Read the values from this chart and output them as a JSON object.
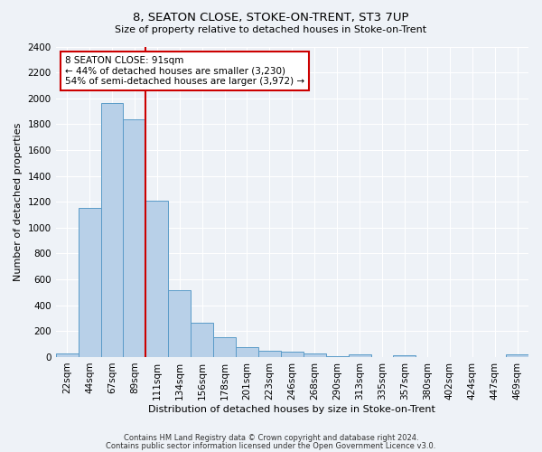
{
  "title": "8, SEATON CLOSE, STOKE-ON-TRENT, ST3 7UP",
  "subtitle": "Size of property relative to detached houses in Stoke-on-Trent",
  "xlabel": "Distribution of detached houses by size in Stoke-on-Trent",
  "ylabel": "Number of detached properties",
  "bar_color": "#b8d0e8",
  "bar_edge_color": "#5a9bc8",
  "categories": [
    "22sqm",
    "44sqm",
    "67sqm",
    "89sqm",
    "111sqm",
    "134sqm",
    "156sqm",
    "178sqm",
    "201sqm",
    "223sqm",
    "246sqm",
    "268sqm",
    "290sqm",
    "313sqm",
    "335sqm",
    "357sqm",
    "380sqm",
    "402sqm",
    "424sqm",
    "447sqm",
    "469sqm"
  ],
  "values": [
    30,
    1150,
    1960,
    1840,
    1210,
    515,
    265,
    155,
    80,
    50,
    45,
    25,
    5,
    20,
    0,
    15,
    0,
    0,
    0,
    0,
    20
  ],
  "ylim": [
    0,
    2400
  ],
  "yticks": [
    0,
    200,
    400,
    600,
    800,
    1000,
    1200,
    1400,
    1600,
    1800,
    2000,
    2200,
    2400
  ],
  "property_line_x": 3.5,
  "annotation_line1": "8 SEATON CLOSE: 91sqm",
  "annotation_line2": "← 44% of detached houses are smaller (3,230)",
  "annotation_line3": "54% of semi-detached houses are larger (3,972) →",
  "annotation_box_color": "#ffffff",
  "annotation_box_edge": "#cc0000",
  "property_line_color": "#cc0000",
  "footer_line1": "Contains HM Land Registry data © Crown copyright and database right 2024.",
  "footer_line2": "Contains public sector information licensed under the Open Government Licence v3.0.",
  "background_color": "#eef2f7",
  "grid_color": "#ffffff",
  "title_fontsize": 9.5,
  "subtitle_fontsize": 8,
  "ylabel_fontsize": 8,
  "xlabel_fontsize": 8,
  "tick_fontsize": 7.5,
  "annotation_fontsize": 7.5,
  "footer_fontsize": 6
}
